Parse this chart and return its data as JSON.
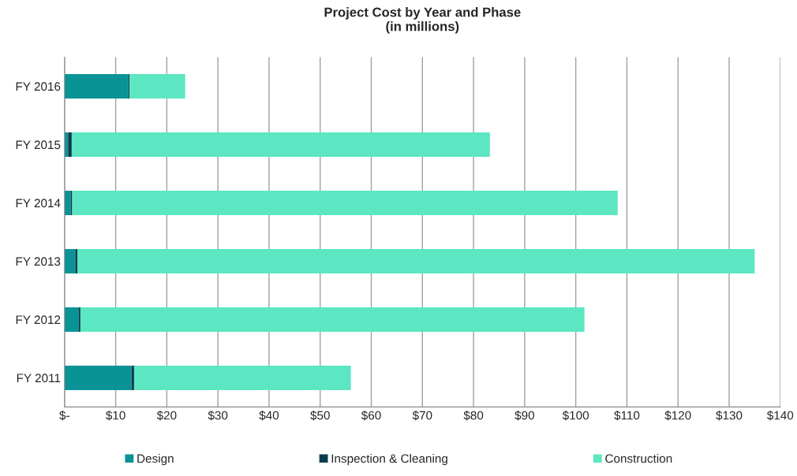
{
  "chart_data": {
    "type": "bar",
    "orientation": "horizontal",
    "stacked": true,
    "title": "Project Cost by Year and Phase\n(in millions)",
    "categories": [
      "FY 2016",
      "FY 2015",
      "FY 2014",
      "FY 2013",
      "FY 2012",
      "FY 2011"
    ],
    "series": [
      {
        "name": "Design",
        "color": "#0a9396",
        "values": [
          12.5,
          0.7,
          1.2,
          2.1,
          2.8,
          13.1
        ]
      },
      {
        "name": "Inspection & Cleaning",
        "color": "#083d4d",
        "values": [
          0.2,
          0.7,
          0.3,
          0.4,
          0.3,
          0.5
        ]
      },
      {
        "name": "Construction",
        "color": "#5ce6c2",
        "values": [
          10.9,
          81.8,
          106.7,
          132.5,
          98.6,
          42.4
        ]
      }
    ],
    "xlim": [
      0,
      140
    ],
    "xticks": [
      {
        "value": 0,
        "label": "$-"
      },
      {
        "value": 10,
        "label": "$10"
      },
      {
        "value": 20,
        "label": "$20"
      },
      {
        "value": 30,
        "label": "$30"
      },
      {
        "value": 40,
        "label": "$40"
      },
      {
        "value": 50,
        "label": "$50"
      },
      {
        "value": 60,
        "label": "$60"
      },
      {
        "value": 70,
        "label": "$70"
      },
      {
        "value": 80,
        "label": "$80"
      },
      {
        "value": 90,
        "label": "$90"
      },
      {
        "value": 100,
        "label": "$100"
      },
      {
        "value": 110,
        "label": "$110"
      },
      {
        "value": 120,
        "label": "$120"
      },
      {
        "value": 130,
        "label": "$130"
      },
      {
        "value": 140,
        "label": "$140"
      }
    ],
    "grid": "x",
    "legend": "bottom"
  }
}
